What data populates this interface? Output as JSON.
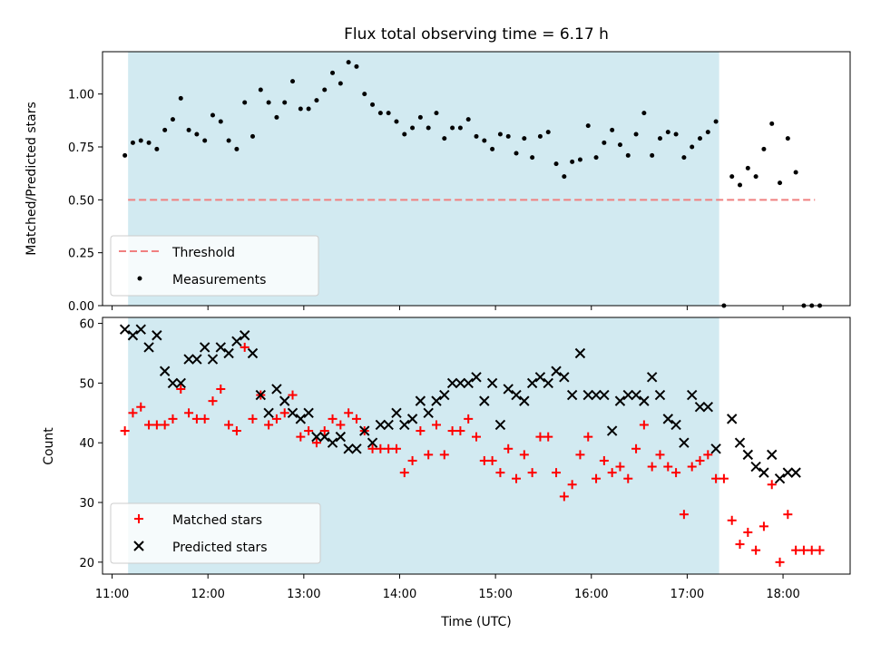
{
  "figure": {
    "title": "Flux total observing time = 6.17 h",
    "xlabel": "Time (UTC)"
  },
  "chart_data": [
    {
      "type": "scatter",
      "panel": "top",
      "ylabel": "Matched/Predicted stars",
      "xlim": [
        "10:54",
        "18:42"
      ],
      "ylim": [
        0,
        1.2
      ],
      "yticks": [
        0.0,
        0.25,
        0.5,
        0.75,
        1.0
      ],
      "ytick_labels": [
        "0.00",
        "0.25",
        "0.50",
        "0.75",
        "1.00"
      ],
      "grid": false,
      "legend_position": "lower-left",
      "shaded_interval": {
        "start": "11:10",
        "end": "17:20",
        "color": "#add8e6"
      },
      "series": [
        {
          "name": "Threshold",
          "kind": "dashed-line",
          "color": "#f08080",
          "x": [
            "11:10",
            "18:20"
          ],
          "y": [
            0.5,
            0.5
          ]
        },
        {
          "name": "Measurements",
          "kind": "points",
          "color": "#000000",
          "x": [
            "11:08",
            "11:13",
            "11:18",
            "11:23",
            "11:28",
            "11:33",
            "11:38",
            "11:43",
            "11:48",
            "11:53",
            "11:58",
            "12:03",
            "12:08",
            "12:13",
            "12:18",
            "12:23",
            "12:28",
            "12:33",
            "12:38",
            "12:43",
            "12:48",
            "12:53",
            "12:58",
            "13:03",
            "13:08",
            "13:13",
            "13:18",
            "13:23",
            "13:28",
            "13:33",
            "13:38",
            "13:43",
            "13:48",
            "13:53",
            "13:58",
            "14:03",
            "14:08",
            "14:13",
            "14:18",
            "14:23",
            "14:28",
            "14:33",
            "14:38",
            "14:43",
            "14:48",
            "14:53",
            "14:58",
            "15:03",
            "15:08",
            "15:13",
            "15:18",
            "15:23",
            "15:28",
            "15:33",
            "15:38",
            "15:43",
            "15:48",
            "15:53",
            "15:58",
            "16:03",
            "16:08",
            "16:13",
            "16:18",
            "16:23",
            "16:28",
            "16:33",
            "16:38",
            "16:43",
            "16:48",
            "16:53",
            "16:58",
            "17:03",
            "17:08",
            "17:13",
            "17:18",
            "17:23",
            "17:28",
            "17:33",
            "17:38",
            "17:43",
            "17:48",
            "17:53",
            "17:58",
            "18:03",
            "18:08",
            "18:13",
            "18:18",
            "18:23"
          ],
          "y": [
            0.71,
            0.77,
            0.78,
            0.77,
            0.74,
            0.83,
            0.88,
            0.98,
            0.83,
            0.81,
            0.78,
            0.9,
            0.87,
            0.78,
            0.74,
            0.96,
            0.8,
            1.02,
            0.96,
            0.89,
            0.96,
            1.06,
            0.93,
            0.93,
            0.97,
            1.02,
            1.1,
            1.05,
            1.15,
            1.13,
            1.0,
            0.95,
            0.91,
            0.91,
            0.87,
            0.81,
            0.84,
            0.89,
            0.84,
            0.91,
            0.79,
            0.84,
            0.84,
            0.88,
            0.8,
            0.78,
            0.74,
            0.81,
            0.8,
            0.72,
            0.79,
            0.7,
            0.8,
            0.82,
            0.67,
            0.61,
            0.68,
            0.69,
            0.85,
            0.7,
            0.77,
            0.83,
            0.76,
            0.71,
            0.81,
            0.91,
            0.71,
            0.79,
            0.82,
            0.81,
            0.7,
            0.75,
            0.79,
            0.82,
            0.87,
            0.0,
            0.61,
            0.57,
            0.65,
            0.61,
            0.74,
            0.86,
            0.58,
            0.79,
            0.63,
            0.0,
            0.0,
            0.0
          ]
        }
      ]
    },
    {
      "type": "scatter",
      "panel": "bottom",
      "ylabel": "Count",
      "xlim": [
        "10:54",
        "18:42"
      ],
      "ylim": [
        18,
        61
      ],
      "yticks": [
        20,
        30,
        40,
        50,
        60
      ],
      "ytick_labels": [
        "20",
        "30",
        "40",
        "50",
        "60"
      ],
      "xticks": [
        "11:00",
        "12:00",
        "13:00",
        "14:00",
        "15:00",
        "16:00",
        "17:00",
        "18:00"
      ],
      "xtick_labels": [
        "11:00",
        "12:00",
        "13:00",
        "14:00",
        "15:00",
        "16:00",
        "17:00",
        "18:00"
      ],
      "grid": false,
      "legend_position": "lower-left",
      "shaded_interval": {
        "start": "11:10",
        "end": "17:20",
        "color": "#add8e6"
      },
      "series": [
        {
          "name": "Matched stars",
          "marker": "plus",
          "color": "#ff0000",
          "x": [
            "11:08",
            "11:13",
            "11:18",
            "11:23",
            "11:28",
            "11:33",
            "11:38",
            "11:43",
            "11:48",
            "11:53",
            "11:58",
            "12:03",
            "12:08",
            "12:13",
            "12:18",
            "12:23",
            "12:28",
            "12:33",
            "12:38",
            "12:43",
            "12:48",
            "12:53",
            "12:58",
            "13:03",
            "13:08",
            "13:13",
            "13:18",
            "13:23",
            "13:28",
            "13:33",
            "13:38",
            "13:43",
            "13:48",
            "13:53",
            "13:58",
            "14:03",
            "14:08",
            "14:13",
            "14:18",
            "14:23",
            "14:28",
            "14:33",
            "14:38",
            "14:43",
            "14:48",
            "14:53",
            "14:58",
            "15:03",
            "15:08",
            "15:13",
            "15:18",
            "15:23",
            "15:28",
            "15:33",
            "15:38",
            "15:43",
            "15:48",
            "15:53",
            "15:58",
            "16:03",
            "16:08",
            "16:13",
            "16:18",
            "16:23",
            "16:28",
            "16:33",
            "16:38",
            "16:43",
            "16:48",
            "16:53",
            "16:58",
            "17:03",
            "17:08",
            "17:13",
            "17:18",
            "17:23",
            "17:28",
            "17:33",
            "17:38",
            "17:43",
            "17:48",
            "17:53",
            "17:58",
            "18:03",
            "18:08",
            "18:13",
            "18:18",
            "18:23"
          ],
          "y": [
            42,
            45,
            46,
            43,
            43,
            43,
            44,
            49,
            45,
            44,
            44,
            47,
            49,
            43,
            42,
            56,
            44,
            48,
            43,
            44,
            45,
            48,
            41,
            42,
            40,
            42,
            44,
            43,
            45,
            44,
            42,
            39,
            39,
            39,
            39,
            35,
            37,
            42,
            38,
            43,
            38,
            42,
            42,
            44,
            41,
            37,
            37,
            35,
            39,
            34,
            38,
            35,
            41,
            41,
            35,
            31,
            33,
            38,
            41,
            34,
            37,
            35,
            36,
            34,
            39,
            43,
            36,
            38,
            36,
            35,
            28,
            36,
            37,
            38,
            34,
            34,
            27,
            23,
            25,
            22,
            26,
            33,
            20,
            28,
            22,
            22,
            22,
            22
          ]
        },
        {
          "name": "Predicted stars",
          "marker": "x",
          "color": "#000000",
          "x": [
            "11:08",
            "11:13",
            "11:18",
            "11:23",
            "11:28",
            "11:33",
            "11:38",
            "11:43",
            "11:48",
            "11:53",
            "11:58",
            "12:03",
            "12:08",
            "12:13",
            "12:18",
            "12:23",
            "12:28",
            "12:33",
            "12:38",
            "12:43",
            "12:48",
            "12:53",
            "12:58",
            "13:03",
            "13:08",
            "13:13",
            "13:18",
            "13:23",
            "13:28",
            "13:33",
            "13:38",
            "13:43",
            "13:48",
            "13:53",
            "13:58",
            "14:03",
            "14:08",
            "14:13",
            "14:18",
            "14:23",
            "14:28",
            "14:33",
            "14:38",
            "14:43",
            "14:48",
            "14:53",
            "14:58",
            "15:03",
            "15:08",
            "15:13",
            "15:18",
            "15:23",
            "15:28",
            "15:33",
            "15:38",
            "15:43",
            "15:48",
            "15:53",
            "15:58",
            "16:03",
            "16:08",
            "16:13",
            "16:18",
            "16:23",
            "16:28",
            "16:33",
            "16:38",
            "16:43",
            "16:48",
            "16:53",
            "16:58",
            "17:03",
            "17:08",
            "17:13",
            "17:18",
            "17:28",
            "17:33",
            "17:38",
            "17:43",
            "17:48",
            "17:53",
            "17:58",
            "18:03",
            "18:08"
          ],
          "y": [
            59,
            58,
            59,
            56,
            58,
            52,
            50,
            50,
            54,
            54,
            56,
            54,
            56,
            55,
            57,
            58,
            55,
            48,
            45,
            49,
            47,
            45,
            44,
            45,
            41,
            41,
            40,
            41,
            39,
            39,
            42,
            40,
            43,
            43,
            45,
            43,
            44,
            47,
            45,
            47,
            48,
            50,
            50,
            50,
            51,
            47,
            50,
            43,
            49,
            48,
            47,
            50,
            51,
            50,
            52,
            51,
            48,
            55,
            48,
            48,
            48,
            42,
            47,
            48,
            48,
            47,
            51,
            48,
            44,
            43,
            40,
            48,
            46,
            46,
            39,
            44,
            40,
            38,
            36,
            35,
            38,
            34,
            35,
            35
          ]
        }
      ]
    }
  ]
}
